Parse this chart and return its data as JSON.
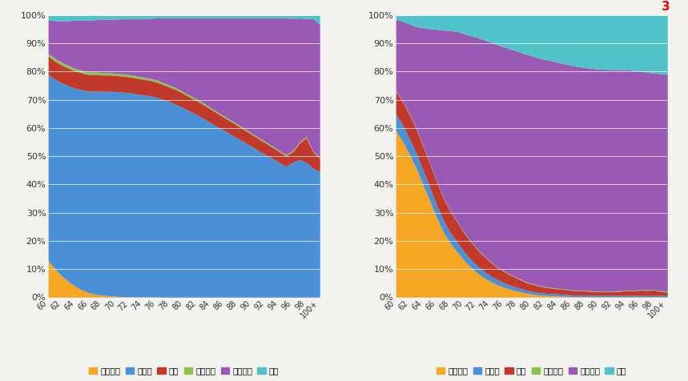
{
  "ages": [
    60,
    61,
    62,
    63,
    64,
    65,
    66,
    67,
    68,
    69,
    70,
    71,
    72,
    73,
    74,
    75,
    76,
    77,
    78,
    79,
    80,
    81,
    82,
    83,
    84,
    85,
    86,
    87,
    88,
    89,
    90,
    91,
    92,
    93,
    94,
    95,
    96,
    97,
    98,
    99,
    100
  ],
  "left": {
    "laodong": [
      0.13,
      0.1,
      0.075,
      0.055,
      0.038,
      0.025,
      0.016,
      0.01,
      0.007,
      0.005,
      0.003,
      0.002,
      0.002,
      0.001,
      0.001,
      0.001,
      0.001,
      0.0,
      0.0,
      0.0,
      0.0,
      0.0,
      0.0,
      0.0,
      0.0,
      0.0,
      0.0,
      0.0,
      0.0,
      0.0,
      0.0,
      0.0,
      0.0,
      0.0,
      0.0,
      0.0,
      0.0,
      0.0,
      0.0,
      0.0,
      0.0
    ],
    "yanglao": [
      0.66,
      0.673,
      0.685,
      0.695,
      0.703,
      0.71,
      0.715,
      0.72,
      0.723,
      0.725,
      0.726,
      0.725,
      0.723,
      0.72,
      0.717,
      0.713,
      0.708,
      0.7,
      0.692,
      0.682,
      0.67,
      0.658,
      0.645,
      0.632,
      0.618,
      0.604,
      0.59,
      0.576,
      0.562,
      0.548,
      0.534,
      0.52,
      0.506,
      0.492,
      0.478,
      0.464,
      0.478,
      0.488,
      0.478,
      0.458,
      0.445
    ],
    "dibao": [
      0.065,
      0.064,
      0.063,
      0.062,
      0.061,
      0.06,
      0.059,
      0.059,
      0.058,
      0.058,
      0.057,
      0.057,
      0.056,
      0.056,
      0.055,
      0.055,
      0.054,
      0.053,
      0.052,
      0.052,
      0.051,
      0.05,
      0.05,
      0.049,
      0.048,
      0.047,
      0.046,
      0.046,
      0.045,
      0.044,
      0.043,
      0.042,
      0.041,
      0.04,
      0.039,
      0.038,
      0.037,
      0.058,
      0.088,
      0.058,
      0.048
    ],
    "caichan": [
      0.01,
      0.01,
      0.01,
      0.01,
      0.009,
      0.009,
      0.009,
      0.009,
      0.009,
      0.008,
      0.008,
      0.008,
      0.008,
      0.008,
      0.007,
      0.007,
      0.007,
      0.007,
      0.007,
      0.006,
      0.006,
      0.006,
      0.006,
      0.006,
      0.005,
      0.005,
      0.005,
      0.005,
      0.005,
      0.005,
      0.004,
      0.004,
      0.004,
      0.004,
      0.004,
      0.004,
      0.004,
      0.004,
      0.004,
      0.003,
      0.003
    ],
    "jiating": [
      0.12,
      0.133,
      0.147,
      0.158,
      0.172,
      0.178,
      0.183,
      0.186,
      0.188,
      0.19,
      0.192,
      0.195,
      0.198,
      0.202,
      0.208,
      0.213,
      0.22,
      0.23,
      0.239,
      0.25,
      0.263,
      0.276,
      0.289,
      0.303,
      0.319,
      0.334,
      0.349,
      0.363,
      0.378,
      0.393,
      0.409,
      0.424,
      0.439,
      0.454,
      0.469,
      0.484,
      0.47,
      0.44,
      0.418,
      0.469,
      0.472
    ],
    "qita": [
      0.015,
      0.02,
      0.02,
      0.02,
      0.017,
      0.018,
      0.018,
      0.016,
      0.015,
      0.014,
      0.014,
      0.013,
      0.013,
      0.013,
      0.012,
      0.011,
      0.01,
      0.01,
      0.01,
      0.01,
      0.01,
      0.01,
      0.01,
      0.01,
      0.01,
      0.01,
      0.01,
      0.01,
      0.01,
      0.01,
      0.01,
      0.01,
      0.01,
      0.01,
      0.01,
      0.01,
      0.011,
      0.01,
      0.012,
      0.012,
      0.032
    ]
  },
  "right": {
    "laodong": [
      0.59,
      0.553,
      0.507,
      0.458,
      0.4,
      0.342,
      0.283,
      0.232,
      0.192,
      0.162,
      0.132,
      0.107,
      0.086,
      0.069,
      0.055,
      0.043,
      0.034,
      0.027,
      0.021,
      0.015,
      0.011,
      0.008,
      0.006,
      0.005,
      0.004,
      0.003,
      0.002,
      0.002,
      0.002,
      0.001,
      0.001,
      0.001,
      0.001,
      0.001,
      0.001,
      0.001,
      0.001,
      0.001,
      0.001,
      0.001,
      0.001
    ],
    "yanglao": [
      0.06,
      0.058,
      0.056,
      0.054,
      0.051,
      0.048,
      0.045,
      0.041,
      0.037,
      0.034,
      0.031,
      0.028,
      0.025,
      0.023,
      0.02,
      0.018,
      0.016,
      0.014,
      0.013,
      0.011,
      0.01,
      0.009,
      0.008,
      0.008,
      0.007,
      0.007,
      0.006,
      0.006,
      0.006,
      0.005,
      0.005,
      0.005,
      0.005,
      0.005,
      0.005,
      0.005,
      0.005,
      0.005,
      0.005,
      0.005,
      0.005
    ],
    "dibao": [
      0.08,
      0.083,
      0.084,
      0.085,
      0.085,
      0.084,
      0.082,
      0.079,
      0.076,
      0.072,
      0.067,
      0.063,
      0.058,
      0.053,
      0.048,
      0.044,
      0.04,
      0.036,
      0.032,
      0.028,
      0.025,
      0.023,
      0.021,
      0.019,
      0.018,
      0.017,
      0.016,
      0.015,
      0.014,
      0.014,
      0.013,
      0.013,
      0.013,
      0.015,
      0.017,
      0.016,
      0.019,
      0.018,
      0.019,
      0.015,
      0.012
    ],
    "caichan": [
      0.002,
      0.002,
      0.002,
      0.002,
      0.002,
      0.002,
      0.002,
      0.002,
      0.002,
      0.002,
      0.002,
      0.002,
      0.002,
      0.002,
      0.002,
      0.002,
      0.002,
      0.002,
      0.002,
      0.002,
      0.002,
      0.002,
      0.002,
      0.002,
      0.002,
      0.002,
      0.002,
      0.002,
      0.002,
      0.002,
      0.002,
      0.002,
      0.002,
      0.002,
      0.002,
      0.002,
      0.002,
      0.002,
      0.002,
      0.002,
      0.002
    ],
    "jiating": [
      0.253,
      0.283,
      0.32,
      0.36,
      0.418,
      0.476,
      0.538,
      0.593,
      0.638,
      0.673,
      0.703,
      0.728,
      0.75,
      0.766,
      0.779,
      0.788,
      0.795,
      0.8,
      0.804,
      0.807,
      0.808,
      0.807,
      0.806,
      0.804,
      0.801,
      0.798,
      0.795,
      0.792,
      0.79,
      0.789,
      0.788,
      0.787,
      0.786,
      0.784,
      0.782,
      0.78,
      0.775,
      0.772,
      0.768,
      0.77,
      0.771
    ],
    "qita": [
      0.015,
      0.021,
      0.031,
      0.041,
      0.044,
      0.048,
      0.05,
      0.053,
      0.055,
      0.057,
      0.065,
      0.072,
      0.079,
      0.087,
      0.096,
      0.105,
      0.113,
      0.121,
      0.128,
      0.137,
      0.144,
      0.151,
      0.157,
      0.162,
      0.168,
      0.173,
      0.179,
      0.183,
      0.186,
      0.189,
      0.191,
      0.192,
      0.193,
      0.193,
      0.193,
      0.196,
      0.198,
      0.202,
      0.205,
      0.207,
      0.209
    ]
  },
  "colors": {
    "laodong": "#F5A623",
    "yanglao": "#4A90D9",
    "dibao": "#C0392B",
    "caichan": "#8BC34A",
    "jiating": "#9B59B6",
    "qita": "#4FC3C8"
  },
  "labels": {
    "laodong": "劳动收入",
    "yanglao": "养老金",
    "dibao": "低保",
    "caichan": "财产收入",
    "jiating": "家庭供养",
    "qita": "其他"
  },
  "xticks": [
    "60",
    "62",
    "64",
    "66",
    "68",
    "70",
    "72",
    "74",
    "76",
    "78",
    "80",
    "82",
    "84",
    "86",
    "88",
    "90",
    "92",
    "94",
    "96",
    "98",
    "100+"
  ],
  "background_color": "#F2F2EE",
  "watermark": "3"
}
